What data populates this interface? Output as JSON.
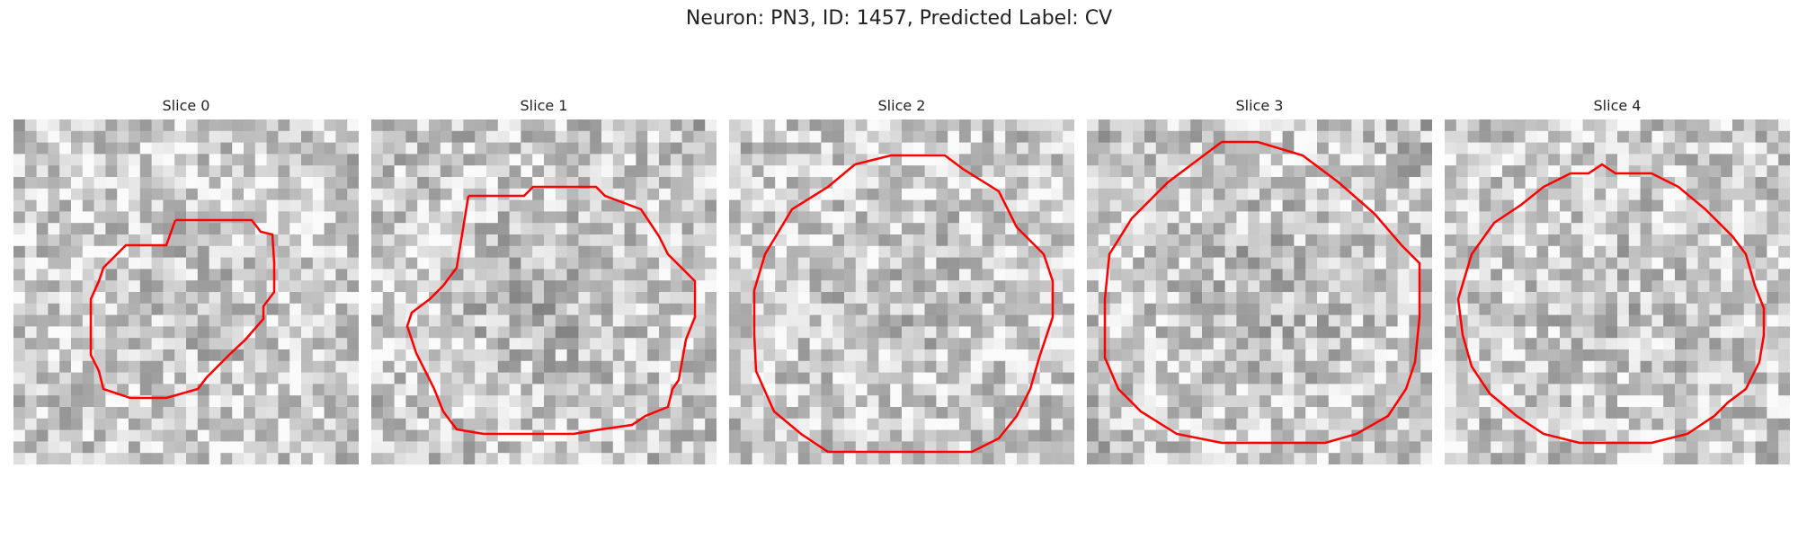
{
  "figure": {
    "title": "Neuron: PN3, ID: 1457, Predicted Label: CV",
    "outline_color": "#ff0000"
  },
  "slices": [
    {
      "title": "Slice 0"
    },
    {
      "title": "Slice 1"
    },
    {
      "title": "Slice 2"
    },
    {
      "title": "Slice 3"
    },
    {
      "title": "Slice 4"
    }
  ]
}
